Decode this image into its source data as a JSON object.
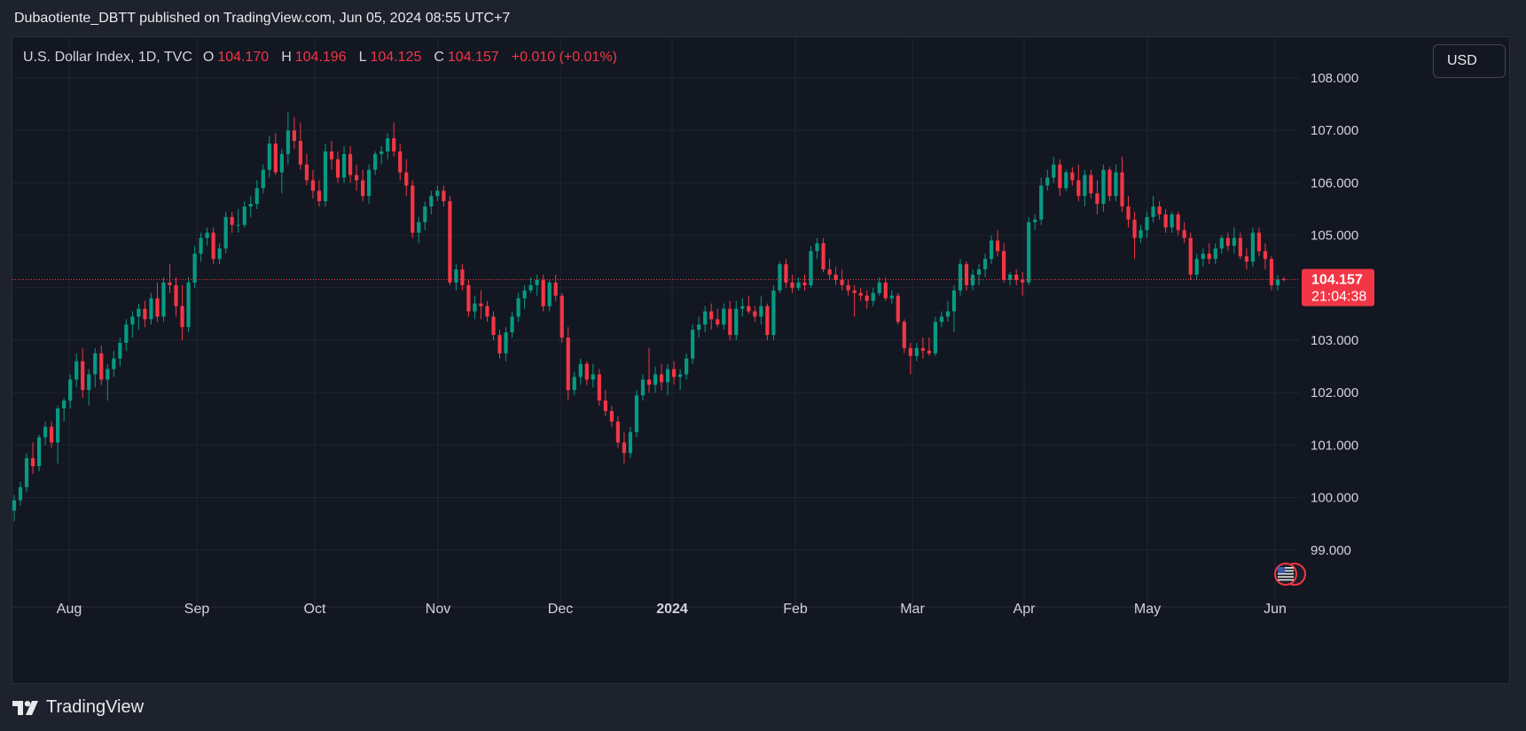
{
  "header": {
    "publisher_line": "Dubaotiente_DBTT published on TradingView.com, Jun 05, 2024 08:55 UTC+7"
  },
  "legend": {
    "symbol": "U.S. Dollar Index, 1D, TVC",
    "o_label": "O",
    "o_value": "104.170",
    "h_label": "H",
    "h_value": "104.196",
    "l_label": "L",
    "l_value": "104.125",
    "c_label": "C",
    "c_value": "104.157",
    "change": "+0.010 (+0.01%)"
  },
  "currency_button": {
    "label": "USD"
  },
  "price_badge": {
    "price": "104.157",
    "countdown": "21:04:38"
  },
  "footer": {
    "brand": "TradingView"
  },
  "colors": {
    "up": "#089981",
    "down": "#f23645",
    "background": "#131722",
    "grid": "#1f2433",
    "text": "#d1d4dc"
  },
  "flag_icon": "us-flag-icon",
  "chart_data": {
    "type": "candlestick",
    "y_ticks": [
      "108.000",
      "107.000",
      "106.000",
      "105.000",
      "104.000",
      "103.000",
      "102.000",
      "101.000",
      "100.000",
      "99.000"
    ],
    "x_ticks": [
      "Aug",
      "Sep",
      "Oct",
      "Nov",
      "Dec",
      "2024",
      "Feb",
      "Mar",
      "Apr",
      "May",
      "Jun"
    ],
    "ylim": [
      98.0,
      108.3
    ],
    "last_price": 104.157,
    "grid": true,
    "ohlc": [
      [
        99.75,
        100.05,
        99.55,
        99.95
      ],
      [
        99.95,
        100.3,
        99.85,
        100.2
      ],
      [
        100.2,
        100.85,
        100.1,
        100.75
      ],
      [
        100.75,
        101.05,
        100.45,
        100.6
      ],
      [
        100.6,
        101.2,
        100.5,
        101.15
      ],
      [
        101.15,
        101.45,
        101.0,
        101.35
      ],
      [
        101.35,
        101.45,
        100.95,
        101.05
      ],
      [
        101.05,
        101.75,
        100.65,
        101.7
      ],
      [
        101.7,
        101.9,
        101.45,
        101.85
      ],
      [
        101.85,
        102.35,
        101.7,
        102.25
      ],
      [
        102.25,
        102.75,
        102.1,
        102.6
      ],
      [
        102.6,
        102.85,
        101.9,
        102.05
      ],
      [
        102.05,
        102.45,
        101.75,
        102.35
      ],
      [
        102.35,
        102.85,
        102.1,
        102.75
      ],
      [
        102.75,
        102.9,
        102.15,
        102.25
      ],
      [
        102.25,
        102.55,
        101.85,
        102.45
      ],
      [
        102.45,
        102.8,
        102.3,
        102.65
      ],
      [
        102.65,
        103.05,
        102.5,
        102.95
      ],
      [
        102.95,
        103.4,
        102.8,
        103.3
      ],
      [
        103.3,
        103.55,
        103.05,
        103.45
      ],
      [
        103.45,
        103.7,
        103.2,
        103.6
      ],
      [
        103.6,
        103.75,
        103.25,
        103.4
      ],
      [
        103.4,
        103.9,
        103.3,
        103.8
      ],
      [
        103.8,
        104.1,
        103.35,
        103.45
      ],
      [
        103.45,
        104.2,
        103.35,
        104.1
      ],
      [
        104.1,
        104.45,
        103.9,
        104.05
      ],
      [
        104.05,
        104.2,
        103.45,
        103.65
      ],
      [
        103.65,
        104.05,
        103.0,
        103.25
      ],
      [
        103.25,
        104.2,
        103.15,
        104.1
      ],
      [
        104.1,
        104.8,
        104.0,
        104.65
      ],
      [
        104.65,
        105.05,
        104.5,
        104.95
      ],
      [
        104.95,
        105.15,
        104.8,
        105.05
      ],
      [
        105.05,
        105.15,
        104.45,
        104.55
      ],
      [
        104.55,
        104.85,
        104.45,
        104.75
      ],
      [
        104.75,
        105.45,
        104.65,
        105.35
      ],
      [
        105.35,
        105.45,
        105.05,
        105.2
      ],
      [
        105.2,
        105.5,
        105.05,
        105.2
      ],
      [
        105.2,
        105.65,
        105.15,
        105.55
      ],
      [
        105.55,
        105.75,
        105.35,
        105.6
      ],
      [
        105.6,
        106.05,
        105.5,
        105.9
      ],
      [
        105.9,
        106.35,
        105.8,
        106.25
      ],
      [
        106.25,
        106.9,
        106.1,
        106.75
      ],
      [
        106.75,
        106.95,
        106.15,
        106.2
      ],
      [
        106.2,
        106.65,
        105.8,
        106.55
      ],
      [
        106.55,
        107.35,
        106.35,
        107.0
      ],
      [
        107.0,
        107.25,
        106.65,
        106.8
      ],
      [
        106.8,
        107.15,
        106.25,
        106.35
      ],
      [
        106.35,
        106.55,
        105.95,
        106.05
      ],
      [
        106.05,
        106.25,
        105.7,
        105.85
      ],
      [
        105.85,
        106.05,
        105.55,
        105.65
      ],
      [
        105.65,
        106.75,
        105.55,
        106.6
      ],
      [
        106.6,
        106.8,
        106.25,
        106.45
      ],
      [
        106.45,
        106.6,
        106.0,
        106.1
      ],
      [
        106.1,
        106.7,
        106.0,
        106.55
      ],
      [
        106.55,
        106.7,
        106.0,
        106.15
      ],
      [
        106.15,
        106.35,
        105.85,
        106.05
      ],
      [
        106.05,
        106.25,
        105.65,
        105.75
      ],
      [
        105.75,
        106.35,
        105.6,
        106.25
      ],
      [
        106.25,
        106.6,
        106.15,
        106.55
      ],
      [
        106.55,
        106.7,
        106.35,
        106.6
      ],
      [
        106.6,
        106.95,
        106.45,
        106.85
      ],
      [
        106.85,
        107.15,
        106.5,
        106.6
      ],
      [
        106.6,
        106.75,
        106.05,
        106.2
      ],
      [
        106.2,
        106.45,
        105.75,
        105.95
      ],
      [
        105.95,
        106.05,
        104.95,
        105.05
      ],
      [
        105.05,
        105.35,
        104.85,
        105.25
      ],
      [
        105.25,
        105.65,
        105.1,
        105.55
      ],
      [
        105.55,
        105.85,
        105.4,
        105.75
      ],
      [
        105.75,
        105.95,
        105.65,
        105.85
      ],
      [
        105.85,
        105.95,
        105.55,
        105.65
      ],
      [
        105.65,
        105.75,
        104.05,
        104.1
      ],
      [
        104.1,
        104.45,
        103.95,
        104.35
      ],
      [
        104.35,
        104.45,
        103.95,
        104.05
      ],
      [
        104.05,
        104.15,
        103.45,
        103.55
      ],
      [
        103.55,
        103.85,
        103.4,
        103.7
      ],
      [
        103.7,
        103.95,
        103.4,
        103.65
      ],
      [
        103.65,
        103.75,
        103.35,
        103.45
      ],
      [
        103.45,
        103.55,
        103.0,
        103.1
      ],
      [
        103.1,
        103.2,
        102.65,
        102.75
      ],
      [
        102.75,
        103.25,
        102.6,
        103.15
      ],
      [
        103.15,
        103.55,
        103.05,
        103.45
      ],
      [
        103.45,
        103.9,
        103.35,
        103.8
      ],
      [
        103.8,
        104.05,
        103.6,
        103.95
      ],
      [
        103.95,
        104.2,
        103.9,
        104.05
      ],
      [
        104.05,
        104.25,
        103.85,
        104.15
      ],
      [
        104.15,
        104.25,
        103.55,
        103.65
      ],
      [
        103.65,
        104.15,
        103.55,
        104.1
      ],
      [
        104.1,
        104.25,
        103.75,
        103.85
      ],
      [
        103.85,
        103.9,
        102.95,
        103.05
      ],
      [
        103.05,
        103.25,
        101.85,
        102.05
      ],
      [
        102.05,
        102.4,
        101.95,
        102.3
      ],
      [
        102.3,
        102.65,
        102.15,
        102.55
      ],
      [
        102.55,
        102.6,
        102.15,
        102.25
      ],
      [
        102.25,
        102.55,
        102.1,
        102.35
      ],
      [
        102.35,
        102.45,
        101.75,
        101.85
      ],
      [
        101.85,
        102.05,
        101.55,
        101.65
      ],
      [
        101.65,
        101.75,
        101.35,
        101.45
      ],
      [
        101.45,
        101.55,
        100.95,
        101.05
      ],
      [
        101.05,
        101.25,
        100.65,
        100.85
      ],
      [
        100.85,
        101.35,
        100.75,
        101.25
      ],
      [
        101.25,
        102.05,
        101.15,
        101.95
      ],
      [
        101.95,
        102.35,
        101.85,
        102.25
      ],
      [
        102.25,
        102.85,
        102.0,
        102.15
      ],
      [
        102.15,
        102.5,
        102.0,
        102.35
      ],
      [
        102.35,
        102.55,
        102.05,
        102.2
      ],
      [
        102.2,
        102.55,
        101.95,
        102.45
      ],
      [
        102.45,
        102.6,
        102.15,
        102.3
      ],
      [
        102.3,
        102.45,
        102.05,
        102.35
      ],
      [
        102.35,
        102.75,
        102.25,
        102.65
      ],
      [
        102.65,
        103.3,
        102.55,
        103.2
      ],
      [
        103.2,
        103.45,
        103.05,
        103.3
      ],
      [
        103.3,
        103.65,
        103.15,
        103.55
      ],
      [
        103.55,
        103.7,
        103.2,
        103.4
      ],
      [
        103.4,
        103.6,
        103.25,
        103.3
      ],
      [
        103.3,
        103.7,
        103.2,
        103.6
      ],
      [
        103.6,
        103.75,
        103.0,
        103.1
      ],
      [
        103.1,
        103.75,
        103.0,
        103.6
      ],
      [
        103.6,
        103.8,
        103.45,
        103.65
      ],
      [
        103.65,
        103.85,
        103.5,
        103.55
      ],
      [
        103.55,
        103.65,
        103.35,
        103.45
      ],
      [
        103.45,
        103.85,
        103.3,
        103.65
      ],
      [
        103.65,
        103.7,
        103.0,
        103.1
      ],
      [
        103.1,
        104.05,
        103.0,
        103.95
      ],
      [
        103.95,
        104.5,
        103.9,
        104.45
      ],
      [
        104.45,
        104.55,
        104.0,
        104.1
      ],
      [
        104.1,
        104.25,
        103.9,
        104.0
      ],
      [
        104.0,
        104.2,
        103.95,
        104.1
      ],
      [
        104.1,
        104.25,
        103.95,
        104.05
      ],
      [
        104.05,
        104.8,
        104.0,
        104.7
      ],
      [
        104.7,
        104.95,
        104.55,
        104.85
      ],
      [
        104.85,
        104.95,
        104.3,
        104.35
      ],
      [
        104.35,
        104.55,
        104.15,
        104.25
      ],
      [
        104.25,
        104.4,
        104.05,
        104.15
      ],
      [
        104.15,
        104.35,
        103.95,
        104.05
      ],
      [
        104.05,
        104.15,
        103.85,
        103.95
      ],
      [
        103.95,
        104.05,
        103.45,
        103.9
      ],
      [
        103.9,
        104.0,
        103.75,
        103.85
      ],
      [
        103.85,
        103.95,
        103.6,
        103.75
      ],
      [
        103.75,
        104.0,
        103.65,
        103.9
      ],
      [
        103.9,
        104.2,
        103.85,
        104.1
      ],
      [
        104.1,
        104.2,
        103.75,
        103.8
      ],
      [
        103.8,
        103.95,
        103.7,
        103.85
      ],
      [
        103.85,
        103.9,
        103.3,
        103.35
      ],
      [
        103.35,
        103.4,
        102.75,
        102.85
      ],
      [
        102.85,
        102.95,
        102.35,
        102.7
      ],
      [
        102.7,
        102.95,
        102.6,
        102.85
      ],
      [
        102.85,
        103.05,
        102.65,
        102.8
      ],
      [
        102.8,
        103.05,
        102.7,
        102.75
      ],
      [
        102.75,
        103.45,
        102.7,
        103.35
      ],
      [
        103.35,
        103.55,
        103.25,
        103.45
      ],
      [
        103.45,
        103.75,
        103.35,
        103.55
      ],
      [
        103.55,
        104.05,
        103.15,
        103.95
      ],
      [
        103.95,
        104.55,
        103.85,
        104.45
      ],
      [
        104.45,
        104.5,
        103.95,
        104.05
      ],
      [
        104.05,
        104.35,
        103.95,
        104.25
      ],
      [
        104.25,
        104.45,
        104.05,
        104.35
      ],
      [
        104.35,
        104.65,
        104.2,
        104.55
      ],
      [
        104.55,
        105.0,
        104.45,
        104.9
      ],
      [
        104.9,
        105.1,
        104.6,
        104.7
      ],
      [
        104.7,
        104.85,
        104.1,
        104.15
      ],
      [
        104.15,
        104.3,
        104.05,
        104.25
      ],
      [
        104.25,
        104.35,
        104.05,
        104.15
      ],
      [
        104.15,
        104.3,
        103.85,
        104.1
      ],
      [
        104.1,
        105.35,
        104.05,
        105.25
      ],
      [
        105.25,
        105.4,
        105.1,
        105.3
      ],
      [
        105.3,
        106.1,
        105.2,
        105.95
      ],
      [
        105.95,
        106.25,
        105.85,
        106.1
      ],
      [
        106.1,
        106.5,
        106.0,
        106.35
      ],
      [
        106.35,
        106.45,
        105.75,
        105.9
      ],
      [
        105.9,
        106.25,
        105.85,
        106.2
      ],
      [
        106.2,
        106.3,
        105.95,
        106.05
      ],
      [
        106.05,
        106.35,
        105.65,
        105.75
      ],
      [
        105.75,
        106.25,
        105.55,
        106.15
      ],
      [
        106.15,
        106.25,
        105.7,
        105.8
      ],
      [
        105.8,
        106.05,
        105.4,
        105.6
      ],
      [
        105.6,
        106.35,
        105.45,
        106.25
      ],
      [
        106.25,
        106.3,
        105.65,
        105.75
      ],
      [
        105.75,
        106.35,
        105.65,
        106.2
      ],
      [
        106.2,
        106.5,
        105.45,
        105.55
      ],
      [
        105.55,
        105.75,
        105.15,
        105.3
      ],
      [
        105.3,
        105.45,
        104.55,
        104.95
      ],
      [
        104.95,
        105.2,
        104.85,
        105.1
      ],
      [
        105.1,
        105.45,
        104.95,
        105.35
      ],
      [
        105.35,
        105.75,
        105.25,
        105.55
      ],
      [
        105.55,
        105.65,
        105.3,
        105.4
      ],
      [
        105.4,
        105.5,
        105.05,
        105.15
      ],
      [
        105.15,
        105.45,
        105.05,
        105.4
      ],
      [
        105.4,
        105.45,
        105.0,
        105.1
      ],
      [
        105.1,
        105.25,
        104.85,
        104.95
      ],
      [
        104.95,
        105.05,
        104.15,
        104.25
      ],
      [
        104.25,
        104.65,
        104.15,
        104.55
      ],
      [
        104.55,
        104.75,
        104.4,
        104.65
      ],
      [
        104.65,
        104.85,
        104.45,
        104.55
      ],
      [
        104.55,
        104.85,
        104.45,
        104.75
      ],
      [
        104.75,
        105.0,
        104.65,
        104.95
      ],
      [
        104.95,
        105.05,
        104.7,
        104.8
      ],
      [
        104.8,
        105.15,
        104.65,
        104.95
      ],
      [
        104.95,
        105.05,
        104.55,
        104.6
      ],
      [
        104.6,
        104.75,
        104.35,
        104.5
      ],
      [
        104.5,
        105.15,
        104.4,
        105.05
      ],
      [
        105.05,
        105.15,
        104.6,
        104.7
      ],
      [
        104.7,
        104.85,
        104.35,
        104.55
      ],
      [
        104.55,
        104.6,
        103.95,
        104.05
      ],
      [
        104.05,
        104.25,
        103.95,
        104.15
      ],
      [
        104.17,
        104.2,
        104.12,
        104.16
      ]
    ]
  }
}
